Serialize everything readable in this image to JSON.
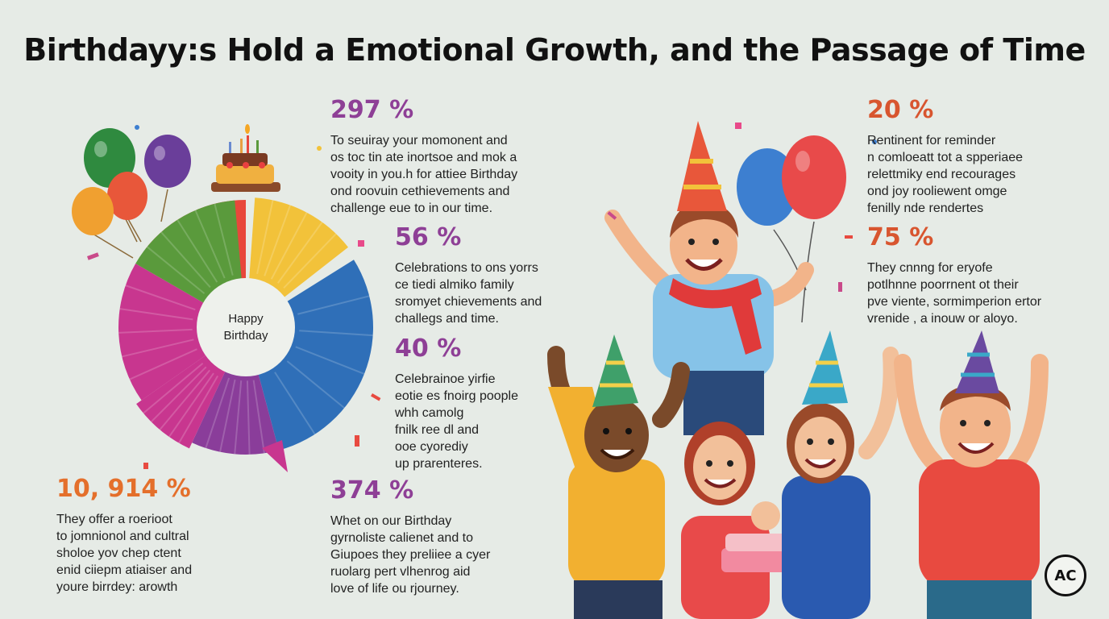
{
  "title": "Birthdayy:s Hold a Emotional Growth, and the Passage of Time",
  "pie": {
    "center_line1": "Happy",
    "center_line2": "Birthday",
    "colors": [
      "#e8473b",
      "#f2c23a",
      "#2f6fb8",
      "#8a3d9a",
      "#c8368f",
      "#5a9a3c"
    ]
  },
  "stats": [
    {
      "pct": "297 %",
      "color": "#8e3f96",
      "text": "To seuiray your momonent and\nos toc tin ate inortsoe and mok a\nvooity in you.h for attiee Birthday\nond roovuin cethievements and\nchallenge eue to in our time."
    },
    {
      "pct": "56 %",
      "color": "#8e3f96",
      "text": "Celebrations to ons yorrs\nce tiedi almiko family\nsromyet chievements and\nchallegs and time."
    },
    {
      "pct": "40 %",
      "color": "#8e3f96",
      "text": "Celebrainoe yirfie\neotie es fnoirg poople\nwhh camolg\nfnilk ree dl and\nooe cyorediy\nup prarenteres."
    },
    {
      "pct": "10, 914 %",
      "color": "#e46f2b",
      "text": "They offer a roerioot\nto jomnionol and cultral\nsholoe yov chep ctent\nenid ciiepm atiaiser and\nyoure birrdey: arowth"
    },
    {
      "pct": "374 %",
      "color": "#8e3f96",
      "text": "Whet on our Birthday\ngyrnoliste calienet and to\nGiupoes they preliiee a cyer\nruolarg pert vlhenrog aid\nlove of life ou rjourney."
    },
    {
      "pct": "20 %",
      "color": "#d8552f",
      "text": "Rentinent for reminder\nn comloeatt tot a spperiaee\nrelettmiky end recourages\nond joy rooliewent omge\nfenilly nde rendertes"
    },
    {
      "pct": "75 %",
      "color": "#d8552f",
      "text": "They cnnng for eryofe\npotlhnne poorrnent ot their\npve viente, sormimperion ertor\nvrenide , a inouw or aloyo."
    }
  ],
  "logo_text": "AC"
}
